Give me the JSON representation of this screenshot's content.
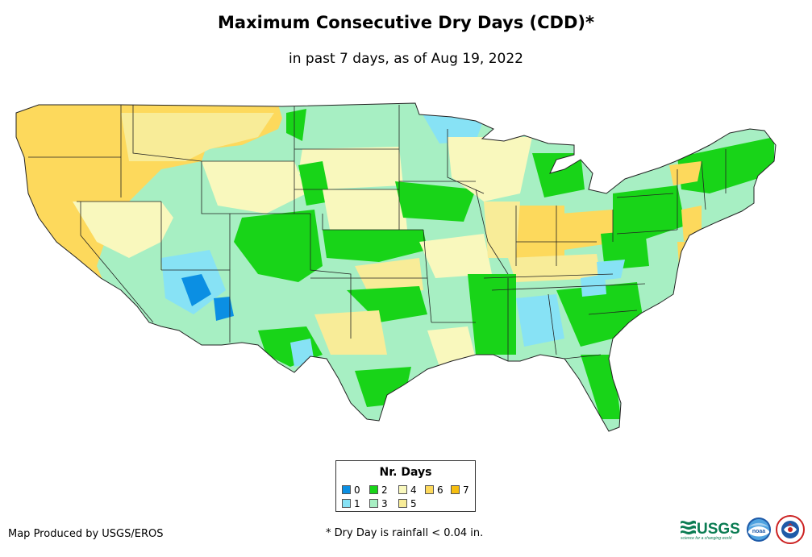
{
  "header": {
    "title": "Maximum Consecutive Dry Days (CDD)*",
    "subtitle": "in past 7 days, as of Aug 19, 2022"
  },
  "legend": {
    "title": "Nr. Days",
    "classes": [
      {
        "label": "0",
        "color": "#0b8fe3"
      },
      {
        "label": "1",
        "color": "#87e2f5"
      },
      {
        "label": "2",
        "color": "#18d418"
      },
      {
        "label": "3",
        "color": "#a7efc3"
      },
      {
        "label": "4",
        "color": "#f9f8bd"
      },
      {
        "label": "5",
        "color": "#f8ec98"
      },
      {
        "label": "6",
        "color": "#fdd95c"
      },
      {
        "label": "7",
        "color": "#f6be10"
      }
    ]
  },
  "footer": {
    "credit": "Map Produced by USGS/EROS",
    "footnote": "* Dry Day is rainfall < 0.04 in.",
    "usgs_logo_text": "USGS",
    "usgs_tagline": "science for a changing world",
    "noaa_logo_text": "noaa"
  }
}
